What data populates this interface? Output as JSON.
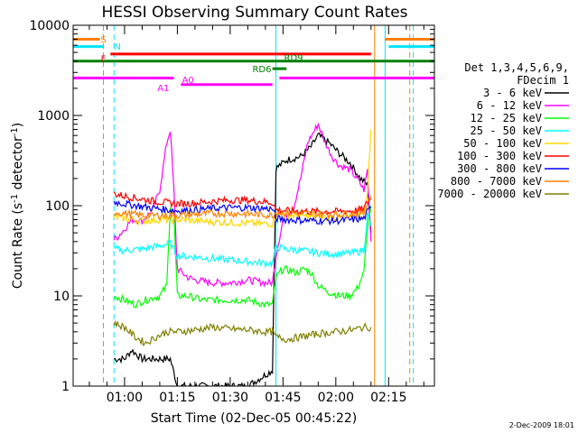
{
  "chart_data": {
    "type": "line",
    "title": "HESSI Observing Summary Count Rates",
    "xlabel": "Start Time (02-Dec-05 00:45:22)",
    "ylabel": "Count Rate (s⁻¹ detector⁻¹)",
    "ylabel_main": "Count Rate (s",
    "ylabel_sup1": "-1",
    "ylabel_mid": " detector",
    "ylabel_sup2": "-1",
    "ylabel_end": ")",
    "y_scale": "log",
    "ylim": [
      1,
      10000
    ],
    "xlim_minutes": [
      45.4,
      148
    ],
    "x_ticks": [
      {
        "t": 60,
        "label": "01:00"
      },
      {
        "t": 75,
        "label": "01:15"
      },
      {
        "t": 90,
        "label": "01:30"
      },
      {
        "t": 105,
        "label": "01:45"
      },
      {
        "t": 120,
        "label": "02:00"
      },
      {
        "t": 135,
        "label": "02:15"
      }
    ],
    "y_ticks": [
      {
        "v": 1,
        "label": "1"
      },
      {
        "v": 10,
        "label": "10"
      },
      {
        "v": 100,
        "label": "100"
      },
      {
        "v": 1000,
        "label": "1000"
      },
      {
        "v": 10000,
        "label": "10000"
      }
    ],
    "legend_title_1": "Det 1,3,4,5,6,9,",
    "legend_title_2": "FDecim 1",
    "legend_placement": "right",
    "timestamp": "2-Dec-2009 18:01",
    "flags": [
      {
        "label": "S",
        "color": "#ff7f00",
        "segments": [
          [
            45.4,
            53
          ],
          [
            134,
            148
          ]
        ],
        "level": 7000,
        "label_t": 54,
        "label_level": 7100
      },
      {
        "label": "N",
        "color": "#00e5ff",
        "segments": [
          [
            45.4,
            54
          ],
          [
            135,
            148
          ]
        ],
        "level": 5800,
        "label_t": 58,
        "label_level": 5900
      },
      {
        "label": "F",
        "color": "#ff0000",
        "segments": [
          [
            56,
            130
          ]
        ],
        "level": 4800,
        "label_t": 54,
        "label_level": 4300
      },
      {
        "label": "RD9",
        "color": "#008000",
        "segments": [
          [
            45.4,
            148
          ]
        ],
        "level": 4000,
        "label_t": 108,
        "label_level": 4400
      },
      {
        "label": "RD6",
        "color": "#008000",
        "segments": [
          [
            102,
            106
          ]
        ],
        "level": 3300,
        "label_t": 99,
        "label_level": 3300
      },
      {
        "label": "A0",
        "color": "#ff00ff",
        "segments": [
          [
            45.4,
            74
          ],
          [
            104,
            148
          ]
        ],
        "level": 2600,
        "label_t": 78,
        "label_level": 2500
      },
      {
        "label": "A1",
        "color": "#ff00ff",
        "segments": [
          [
            76,
            102
          ]
        ],
        "level": 2200,
        "label_t": 71,
        "label_level": 2050
      }
    ],
    "vlines": [
      {
        "t": 45.4,
        "color": "#00e5ff",
        "dashed": false
      },
      {
        "t": 54,
        "color": "#ff7f00",
        "dashed": true
      },
      {
        "t": 57,
        "color": "#00e5ff",
        "dashed": true
      },
      {
        "t": 103,
        "color": "#00e5ff",
        "dashed": false
      },
      {
        "t": 131,
        "color": "#ff7f00",
        "dashed": false
      },
      {
        "t": 134,
        "color": "#00e5ff",
        "dashed": false
      },
      {
        "t": 141,
        "color": "#ff7f00",
        "dashed": true
      },
      {
        "t": 142,
        "color": "#00e5ff",
        "dashed": true
      }
    ],
    "series": [
      {
        "name": "3 - 6 keV",
        "color": "#000000",
        "points": [
          [
            57,
            2
          ],
          [
            60,
            2
          ],
          [
            62,
            2.5
          ],
          [
            65,
            2
          ],
          [
            70,
            2
          ],
          [
            73,
            2
          ],
          [
            75,
            1
          ],
          [
            85,
            1
          ],
          [
            95,
            1
          ],
          [
            102,
            1.5
          ],
          [
            103,
            260
          ],
          [
            106,
            320
          ],
          [
            110,
            350
          ],
          [
            113,
            450
          ],
          [
            115,
            600
          ],
          [
            118,
            500
          ],
          [
            121,
            380
          ],
          [
            124,
            300
          ],
          [
            127,
            200
          ],
          [
            129,
            170
          ],
          [
            130,
            50
          ]
        ]
      },
      {
        "name": "6 - 12 keV",
        "color": "#ff00ff",
        "points": [
          [
            57,
            42
          ],
          [
            58,
            45
          ],
          [
            60,
            55
          ],
          [
            62,
            70
          ],
          [
            65,
            68
          ],
          [
            68,
            90
          ],
          [
            70,
            150
          ],
          [
            72,
            500
          ],
          [
            73,
            700
          ],
          [
            74,
            150
          ],
          [
            75,
            20
          ],
          [
            78,
            16
          ],
          [
            80,
            15
          ],
          [
            85,
            14
          ],
          [
            90,
            14
          ],
          [
            95,
            15
          ],
          [
            100,
            14
          ],
          [
            102,
            14
          ],
          [
            103,
            28
          ],
          [
            105,
            70
          ],
          [
            106,
            80
          ],
          [
            108,
            95
          ],
          [
            110,
            200
          ],
          [
            112,
            500
          ],
          [
            115,
            800
          ],
          [
            117,
            500
          ],
          [
            119,
            350
          ],
          [
            121,
            280
          ],
          [
            124,
            250
          ],
          [
            126,
            200
          ],
          [
            128,
            150
          ],
          [
            129,
            250
          ],
          [
            130,
            40
          ]
        ]
      },
      {
        "name": "12 - 25 keV",
        "color": "#00ff00",
        "points": [
          [
            57,
            10
          ],
          [
            60,
            9
          ],
          [
            63,
            8
          ],
          [
            66,
            9
          ],
          [
            70,
            10
          ],
          [
            72,
            13
          ],
          [
            73,
            100
          ],
          [
            74,
            80
          ],
          [
            75,
            10
          ],
          [
            78,
            10
          ],
          [
            82,
            9
          ],
          [
            86,
            9
          ],
          [
            90,
            9
          ],
          [
            95,
            9
          ],
          [
            100,
            8
          ],
          [
            102,
            8
          ],
          [
            103,
            16
          ],
          [
            105,
            20
          ],
          [
            107,
            19
          ],
          [
            109,
            18
          ],
          [
            111,
            20
          ],
          [
            113,
            18
          ],
          [
            115,
            13
          ],
          [
            118,
            11
          ],
          [
            121,
            10
          ],
          [
            124,
            10
          ],
          [
            126,
            12
          ],
          [
            128,
            18
          ],
          [
            129,
            60
          ],
          [
            130,
            100
          ]
        ]
      },
      {
        "name": "25 - 50 keV",
        "color": "#00ffff",
        "points": [
          [
            57,
            33
          ],
          [
            60,
            32
          ],
          [
            65,
            33
          ],
          [
            70,
            36
          ],
          [
            73,
            38
          ],
          [
            75,
            28
          ],
          [
            80,
            27
          ],
          [
            85,
            26
          ],
          [
            90,
            25
          ],
          [
            95,
            24
          ],
          [
            100,
            23
          ],
          [
            102,
            23
          ],
          [
            103,
            35
          ],
          [
            106,
            33
          ],
          [
            110,
            32
          ],
          [
            115,
            30
          ],
          [
            120,
            29
          ],
          [
            125,
            30
          ],
          [
            128,
            32
          ],
          [
            129,
            80
          ],
          [
            130,
            60
          ]
        ]
      },
      {
        "name": "50 - 100 keV",
        "color": "#ffd700",
        "points": [
          [
            57,
            75
          ],
          [
            60,
            72
          ],
          [
            65,
            68
          ],
          [
            70,
            70
          ],
          [
            73,
            70
          ],
          [
            75,
            70
          ],
          [
            80,
            68
          ],
          [
            85,
            66
          ],
          [
            90,
            65
          ],
          [
            95,
            64
          ],
          [
            100,
            63
          ],
          [
            102,
            63
          ],
          [
            103,
            80
          ],
          [
            106,
            78
          ],
          [
            110,
            77
          ],
          [
            115,
            75
          ],
          [
            120,
            74
          ],
          [
            125,
            75
          ],
          [
            128,
            78
          ],
          [
            129,
            150
          ],
          [
            130,
            700
          ]
        ]
      },
      {
        "name": "100 - 300 keV",
        "color": "#ff0000",
        "points": [
          [
            57,
            135
          ],
          [
            60,
            128
          ],
          [
            65,
            118
          ],
          [
            70,
            110
          ],
          [
            75,
            105
          ],
          [
            80,
            107
          ],
          [
            85,
            112
          ],
          [
            90,
            115
          ],
          [
            95,
            115
          ],
          [
            100,
            110
          ],
          [
            102,
            108
          ],
          [
            103,
            90
          ],
          [
            106,
            88
          ],
          [
            110,
            87
          ],
          [
            115,
            86
          ],
          [
            120,
            86
          ],
          [
            125,
            88
          ],
          [
            128,
            92
          ],
          [
            129,
            110
          ],
          [
            130,
            120
          ]
        ]
      },
      {
        "name": "300 - 800 keV",
        "color": "#0000ff",
        "points": [
          [
            57,
            110
          ],
          [
            60,
            105
          ],
          [
            65,
            98
          ],
          [
            70,
            92
          ],
          [
            75,
            88
          ],
          [
            80,
            90
          ],
          [
            85,
            93
          ],
          [
            90,
            95
          ],
          [
            95,
            95
          ],
          [
            100,
            93
          ],
          [
            102,
            92
          ],
          [
            103,
            72
          ],
          [
            106,
            70
          ],
          [
            110,
            69
          ],
          [
            115,
            68
          ],
          [
            120,
            68
          ],
          [
            125,
            70
          ],
          [
            128,
            72
          ],
          [
            129,
            85
          ],
          [
            130,
            95
          ]
        ]
      },
      {
        "name": "800 - 7000 keV",
        "color": "#ff7f00",
        "points": [
          [
            57,
            85
          ],
          [
            60,
            82
          ],
          [
            65,
            78
          ],
          [
            70,
            78
          ],
          [
            75,
            78
          ],
          [
            80,
            80
          ],
          [
            85,
            82
          ],
          [
            90,
            82
          ],
          [
            95,
            81
          ],
          [
            100,
            79
          ],
          [
            102,
            78
          ],
          [
            103,
            85
          ],
          [
            106,
            83
          ],
          [
            110,
            82
          ],
          [
            115,
            81
          ],
          [
            120,
            80
          ],
          [
            125,
            82
          ],
          [
            128,
            84
          ],
          [
            129,
            110
          ],
          [
            130,
            130
          ]
        ]
      },
      {
        "name": "7000 - 20000 keV",
        "color": "#808000",
        "points": [
          [
            57,
            5
          ],
          [
            60,
            4.5
          ],
          [
            63,
            3.5
          ],
          [
            66,
            3
          ],
          [
            69,
            3.5
          ],
          [
            72,
            4
          ],
          [
            75,
            4
          ],
          [
            80,
            4.2
          ],
          [
            85,
            4.5
          ],
          [
            90,
            4.3
          ],
          [
            95,
            4.2
          ],
          [
            100,
            4
          ],
          [
            102,
            4
          ],
          [
            103,
            3.5
          ],
          [
            106,
            3.3
          ],
          [
            110,
            3.5
          ],
          [
            115,
            3.8
          ],
          [
            120,
            4
          ],
          [
            125,
            4.2
          ],
          [
            128,
            4.5
          ],
          [
            130,
            4.5
          ]
        ]
      }
    ]
  }
}
